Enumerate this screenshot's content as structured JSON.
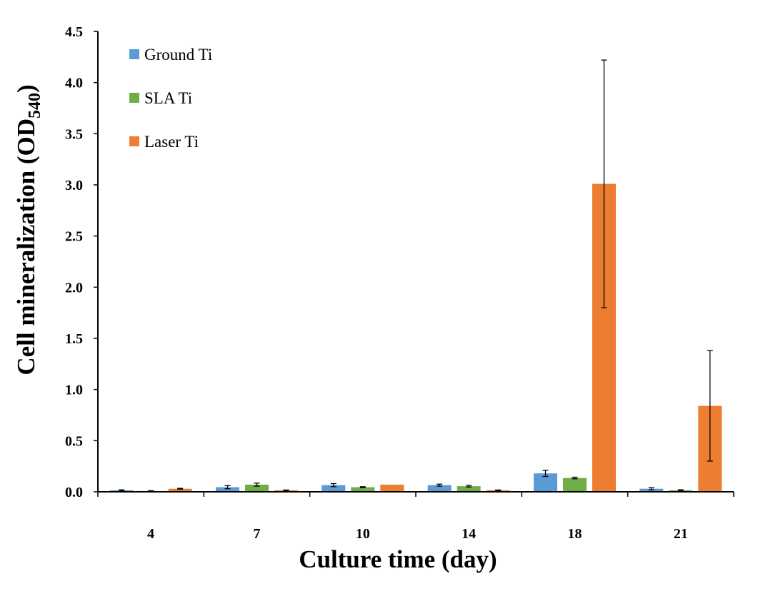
{
  "chart_data": {
    "type": "bar",
    "title": "",
    "xlabel": "Culture time (day)",
    "ylabel": "Cell mineralization (OD",
    "ylabel_subscript": "540",
    "ylabel_suffix": ")",
    "ylim": [
      0,
      4.5
    ],
    "yticks": [
      "0.0",
      "0.5",
      "1.0",
      "1.5",
      "2.0",
      "2.5",
      "3.0",
      "3.5",
      "4.0",
      "4.5"
    ],
    "categories": [
      "4",
      "7",
      "10",
      "14",
      "18",
      "21"
    ],
    "legend_position": "top-left",
    "grid": false,
    "series": [
      {
        "name": "Ground Ti",
        "color": "#5B9BD5",
        "values": [
          0.015,
          0.045,
          0.065,
          0.065,
          0.18,
          0.03
        ],
        "errors": [
          0.004,
          0.015,
          0.015,
          0.01,
          0.03,
          0.01
        ]
      },
      {
        "name": "SLA Ti",
        "color": "#70AD47",
        "values": [
          0.008,
          0.07,
          0.045,
          0.055,
          0.135,
          0.015
        ],
        "errors": [
          0.003,
          0.015,
          0.005,
          0.008,
          0.008,
          0.005
        ]
      },
      {
        "name": "Laser Ti",
        "color": "#ED7D31",
        "values": [
          0.03,
          0.015,
          0.07,
          0.015,
          3.01,
          0.84
        ],
        "errors": [
          0.004,
          0.003,
          0.0,
          0.003,
          1.21,
          0.54
        ]
      }
    ]
  }
}
